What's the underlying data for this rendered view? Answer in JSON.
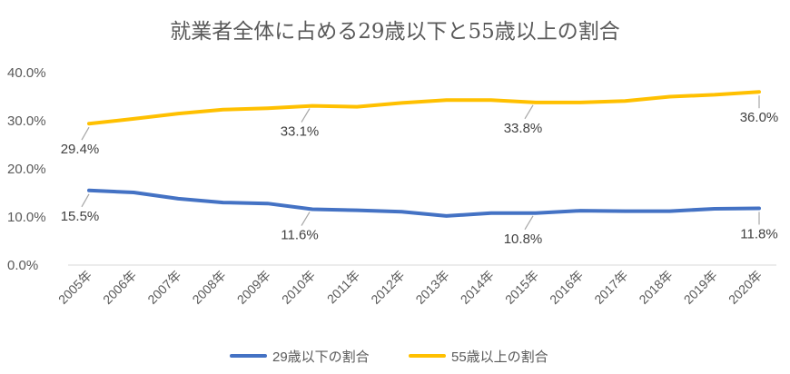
{
  "chart_data": {
    "type": "line",
    "title": "就業者全体に占める29歳以下と55歳以上の割合",
    "xlabel": "",
    "ylabel": "",
    "categories": [
      "2005年",
      "2006年",
      "2007年",
      "2008年",
      "2009年",
      "2010年",
      "2011年",
      "2012年",
      "2013年",
      "2014年",
      "2015年",
      "2016年",
      "2017年",
      "2018年",
      "2019年",
      "2020年"
    ],
    "ylim": [
      0,
      40
    ],
    "yticks": [
      "0.0%",
      "10.0%",
      "20.0%",
      "30.0%",
      "40.0%"
    ],
    "grid": false,
    "legend_position": "bottom",
    "series": [
      {
        "name": "29歳以下の割合",
        "color": "#4472c4",
        "values": [
          15.5,
          15.1,
          13.8,
          13.0,
          12.8,
          11.6,
          11.4,
          11.1,
          10.2,
          10.8,
          10.8,
          11.3,
          11.2,
          11.2,
          11.7,
          11.8
        ],
        "labels": [
          {
            "index": 0,
            "text": "15.5%"
          },
          {
            "index": 5,
            "text": "11.6%"
          },
          {
            "index": 10,
            "text": "10.8%"
          },
          {
            "index": 15,
            "text": "11.8%"
          }
        ]
      },
      {
        "name": "55歳以上の割合",
        "color": "#ffc000",
        "values": [
          29.4,
          30.4,
          31.5,
          32.3,
          32.6,
          33.1,
          32.9,
          33.7,
          34.3,
          34.3,
          33.8,
          33.8,
          34.1,
          35.0,
          35.4,
          36.0
        ],
        "labels": [
          {
            "index": 0,
            "text": "29.4%"
          },
          {
            "index": 5,
            "text": "33.1%"
          },
          {
            "index": 10,
            "text": "33.8%"
          },
          {
            "index": 15,
            "text": "36.0%"
          }
        ]
      }
    ]
  }
}
